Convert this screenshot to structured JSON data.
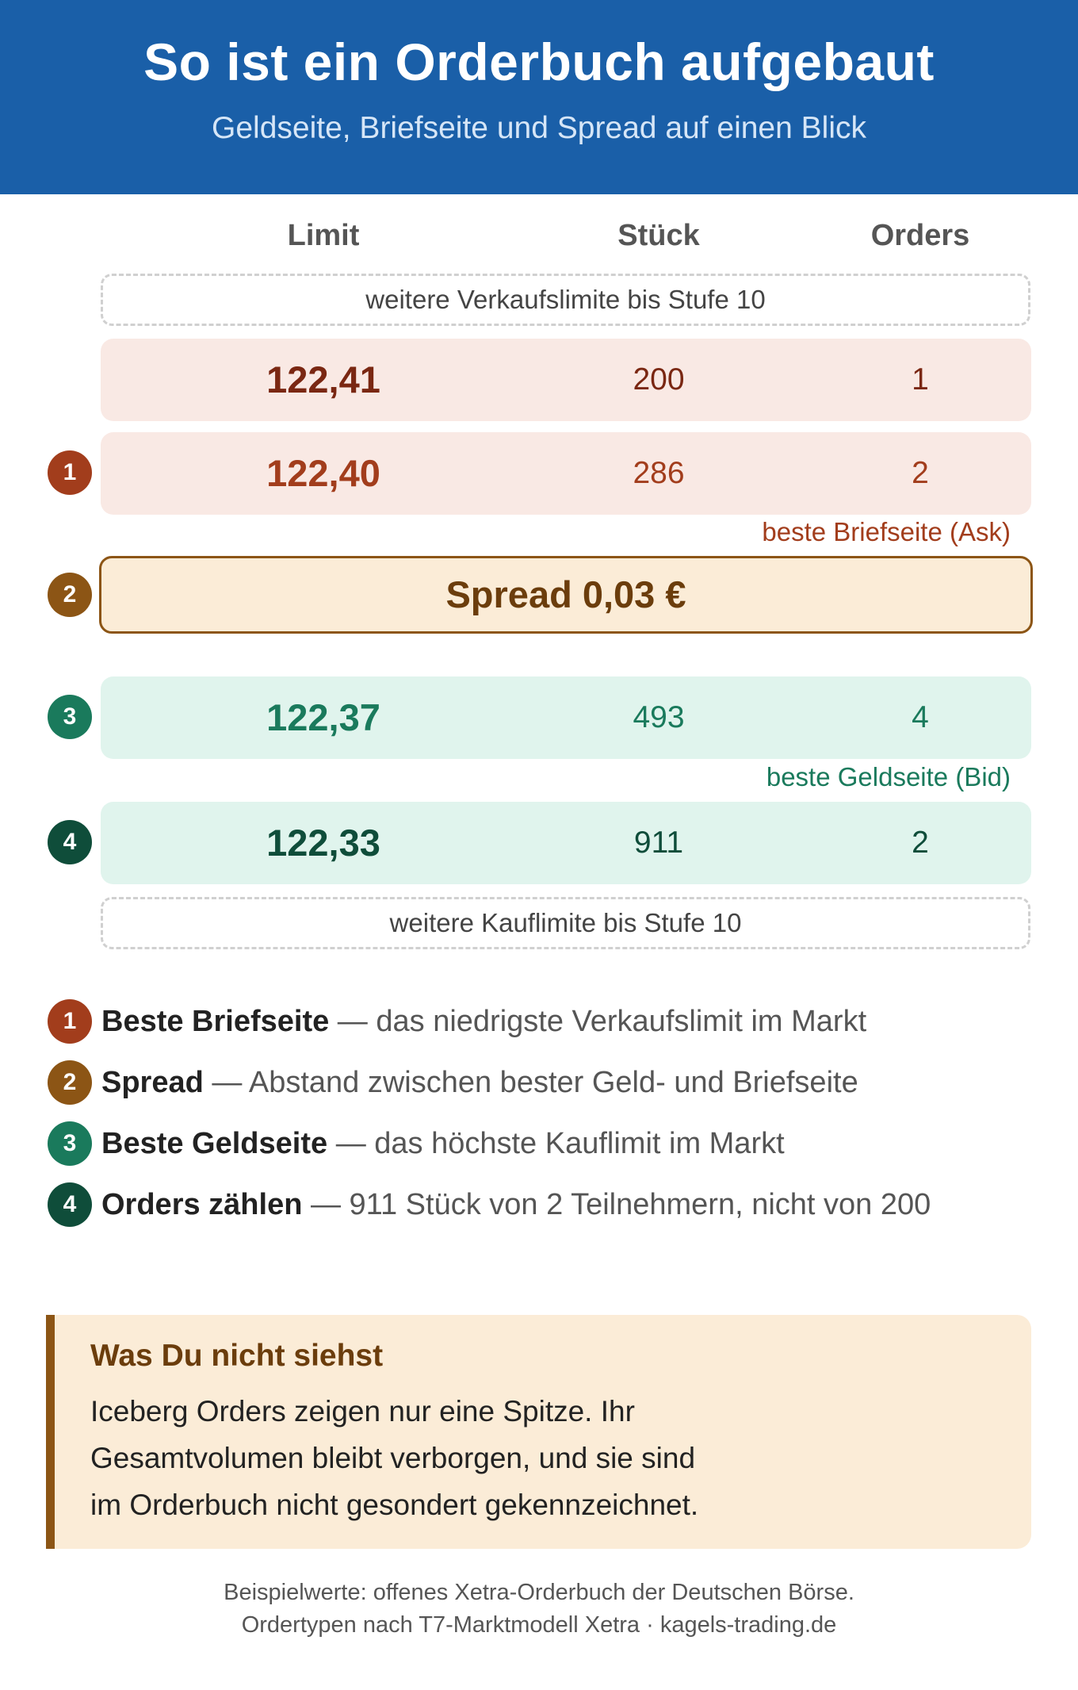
{
  "header": {
    "title": "So ist ein Orderbuch aufgebaut",
    "subtitle": "Geldseite, Briefseite und Spread auf einen Blick"
  },
  "columns": {
    "limit": "Limit",
    "quantity": "Stück",
    "orders": "Orders"
  },
  "more_asks": "weitere Verkaufslimite bis Stufe 10",
  "asks": [
    {
      "limit": "122,41",
      "quantity": "200",
      "orders": "1"
    },
    {
      "limit": "122,40",
      "quantity": "286",
      "orders": "2",
      "badge": "1"
    }
  ],
  "best_ask_note": "beste Briefseite (Ask)",
  "spread": {
    "badge": "2",
    "label": "Spread 0,03 €"
  },
  "bids": [
    {
      "limit": "122,37",
      "quantity": "493",
      "orders": "4",
      "badge": "3"
    },
    {
      "limit": "122,33",
      "quantity": "911",
      "orders": "2",
      "badge": "4"
    }
  ],
  "best_bid_note": "beste Geldseite (Bid)",
  "more_bids": "weitere Kauflimite bis Stufe 10",
  "legend": [
    {
      "badge": "1",
      "term": "Beste Briefseite",
      "desc": " — das niedrigste Verkaufslimit im Markt"
    },
    {
      "badge": "2",
      "term": "Spread",
      "desc": " — Abstand zwischen bester Geld- und Briefseite"
    },
    {
      "badge": "3",
      "term": "Beste Geldseite",
      "desc": " — das höchste Kauflimit im Markt"
    },
    {
      "badge": "4",
      "term": "Orders zählen",
      "desc": " — 911 Stück von 2 Teilnehmern, nicht von 200"
    }
  ],
  "callout": {
    "title": "Was Du nicht siehst",
    "lines": [
      "Iceberg Orders zeigen nur eine Spitze. Ihr",
      "Gesamtvolumen bleibt verborgen, und sie sind",
      "im Orderbuch nicht gesondert gekennzeichnet."
    ]
  },
  "footer": {
    "line1": "Beispielwerte: offenes Xetra-Orderbuch der Deutschen Börse.",
    "line2": "Ordertypen nach T7-Marktmodell Xetra · kagels-trading.de"
  },
  "colors": {
    "header_bg": "#1a5fa8",
    "ask_bg": "#f9e9e4",
    "ask_text": "#a23d1c",
    "spread_bg": "#fbecd7",
    "spread_accent": "#8c5515",
    "bid_bg": "#e0f4ed",
    "bid_text": "#1a7a5c",
    "bid_dark": "#0f4d3a"
  }
}
